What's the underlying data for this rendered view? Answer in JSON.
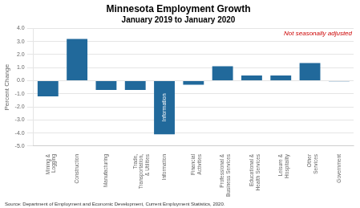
{
  "chart_data": {
    "type": "bar",
    "title": "Minnesota Employment Growth",
    "subtitle": "January 2019 to January 2020",
    "categories": [
      "Mining &\nLogging",
      "Construction",
      "Manufacturing",
      "Trade,\nTransportation,\n& Utilities",
      "Information",
      "Financial\nActivities",
      "Professional &\nBusiness Services",
      "Educational &\nHealth Services",
      "Leisure &\nHospitality",
      "Other\nServices",
      "Government"
    ],
    "values": [
      -1.2,
      3.2,
      -0.7,
      -0.7,
      -4.1,
      -0.3,
      1.1,
      0.4,
      0.4,
      1.35,
      -0.05
    ],
    "color": "#21699b",
    "ylabel": "Percent Change",
    "ylim": [
      -5.0,
      4.0
    ],
    "yticks": [
      {
        "value": -5,
        "label": "-5.0"
      },
      {
        "value": -4,
        "label": "-4.0"
      },
      {
        "value": -3,
        "label": "-3.0"
      },
      {
        "value": -2,
        "label": "-2.0"
      },
      {
        "value": -1,
        "label": "-1.0"
      },
      {
        "value": 0,
        "label": "0.0"
      },
      {
        "value": 1,
        "label": "1.0"
      },
      {
        "value": 2,
        "label": "2.0"
      },
      {
        "value": 3,
        "label": "3.0"
      },
      {
        "value": 4,
        "label": "4.0"
      }
    ],
    "grid": true,
    "annotations": [
      {
        "text": "Not seasonally adjusted",
        "color": "#cc0000"
      },
      {
        "text": "Information",
        "category": "Information"
      }
    ],
    "source": "Source: Department of Employment and Economic Development, Current Employment Statistics, 2020."
  }
}
